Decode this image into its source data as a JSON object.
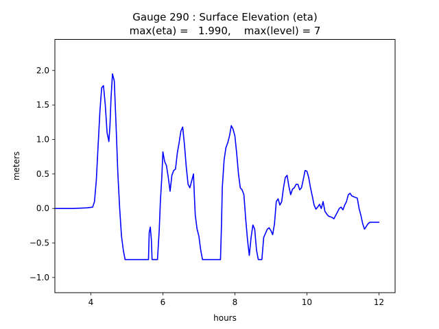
{
  "chart_data": {
    "type": "line",
    "title": "Gauge 290 : Surface Elevation (eta)",
    "subtitle": "max(eta) =   1.990,    max(level) = 7",
    "xlabel": "hours",
    "ylabel": "meters",
    "xlim": [
      3.0,
      12.45
    ],
    "ylim": [
      -1.22,
      2.45
    ],
    "xticks": [
      4,
      6,
      8,
      10,
      12
    ],
    "yticks": [
      -1.0,
      -0.5,
      0.0,
      0.5,
      1.0,
      1.5,
      2.0
    ],
    "ytick_labels": [
      "−1.0",
      "−0.5",
      "0.0",
      "0.5",
      "1.0",
      "1.5",
      "2.0"
    ],
    "grid": false,
    "series": [
      {
        "name": "eta",
        "color": "#0000ff",
        "x": [
          3.0,
          3.5,
          3.9,
          4.05,
          4.1,
          4.15,
          4.2,
          4.25,
          4.3,
          4.35,
          4.4,
          4.45,
          4.5,
          4.53,
          4.56,
          4.6,
          4.65,
          4.7,
          4.75,
          4.8,
          4.85,
          4.9,
          4.95,
          5.0,
          5.3,
          5.6,
          5.62,
          5.65,
          5.68,
          5.7,
          5.75,
          5.85,
          5.9,
          5.93,
          5.97,
          6.0,
          6.05,
          6.1,
          6.15,
          6.2,
          6.25,
          6.3,
          6.35,
          6.4,
          6.45,
          6.5,
          6.55,
          6.6,
          6.65,
          6.7,
          6.75,
          6.8,
          6.85,
          6.88,
          6.9,
          6.95,
          7.0,
          7.05,
          7.1,
          7.2,
          7.3,
          7.6,
          7.63,
          7.65,
          7.7,
          7.75,
          7.8,
          7.85,
          7.9,
          7.95,
          8.0,
          8.05,
          8.1,
          8.15,
          8.2,
          8.25,
          8.3,
          8.35,
          8.4,
          8.45,
          8.5,
          8.55,
          8.6,
          8.65,
          8.7,
          8.75,
          8.8,
          8.9,
          8.95,
          9.0,
          9.05,
          9.1,
          9.15,
          9.2,
          9.25,
          9.3,
          9.35,
          9.4,
          9.45,
          9.5,
          9.55,
          9.6,
          9.65,
          9.7,
          9.75,
          9.8,
          9.85,
          9.9,
          9.95,
          10.0,
          10.05,
          10.1,
          10.15,
          10.2,
          10.25,
          10.3,
          10.35,
          10.4,
          10.45,
          10.5,
          10.55,
          10.6,
          10.65,
          10.7,
          10.75,
          10.8,
          10.85,
          10.9,
          10.95,
          11.0,
          11.05,
          11.1,
          11.15,
          11.2,
          11.25,
          11.3,
          11.35,
          11.4,
          11.45,
          11.5,
          11.55,
          11.6,
          11.65,
          11.7,
          11.75,
          11.8,
          11.85,
          11.9,
          11.95,
          12.0
        ],
        "y": [
          0.0,
          0.0,
          0.01,
          0.02,
          0.1,
          0.4,
          0.9,
          1.4,
          1.75,
          1.78,
          1.5,
          1.1,
          0.97,
          1.2,
          1.6,
          1.95,
          1.85,
          1.2,
          0.5,
          0.0,
          -0.4,
          -0.6,
          -0.74,
          -0.74,
          -0.74,
          -0.74,
          -0.35,
          -0.27,
          -0.45,
          -0.74,
          -0.74,
          -0.74,
          -0.3,
          0.1,
          0.45,
          0.82,
          0.68,
          0.62,
          0.45,
          0.25,
          0.48,
          0.55,
          0.57,
          0.8,
          0.95,
          1.12,
          1.18,
          0.92,
          0.6,
          0.35,
          0.3,
          0.4,
          0.5,
          0.12,
          -0.1,
          -0.3,
          -0.4,
          -0.6,
          -0.74,
          -0.74,
          -0.74,
          -0.74,
          -0.2,
          0.3,
          0.7,
          0.88,
          0.95,
          1.05,
          1.2,
          1.15,
          1.05,
          0.8,
          0.5,
          0.3,
          0.27,
          0.2,
          -0.15,
          -0.45,
          -0.68,
          -0.42,
          -0.24,
          -0.3,
          -0.6,
          -0.74,
          -0.74,
          -0.74,
          -0.42,
          -0.3,
          -0.28,
          -0.32,
          -0.38,
          -0.22,
          0.1,
          0.14,
          0.05,
          0.1,
          0.3,
          0.45,
          0.48,
          0.32,
          0.2,
          0.28,
          0.3,
          0.35,
          0.35,
          0.27,
          0.3,
          0.42,
          0.55,
          0.54,
          0.45,
          0.3,
          0.18,
          0.05,
          -0.01,
          0.02,
          0.06,
          0.0,
          0.1,
          -0.04,
          -0.08,
          -0.11,
          -0.12,
          -0.13,
          -0.15,
          -0.1,
          -0.05,
          0.0,
          0.02,
          -0.02,
          0.05,
          0.1,
          0.2,
          0.22,
          0.18,
          0.17,
          0.16,
          0.15,
          0.0,
          -0.1,
          -0.22,
          -0.3,
          -0.26,
          -0.22,
          -0.2,
          -0.2,
          -0.2,
          -0.2,
          -0.2,
          -0.2
        ]
      }
    ]
  }
}
